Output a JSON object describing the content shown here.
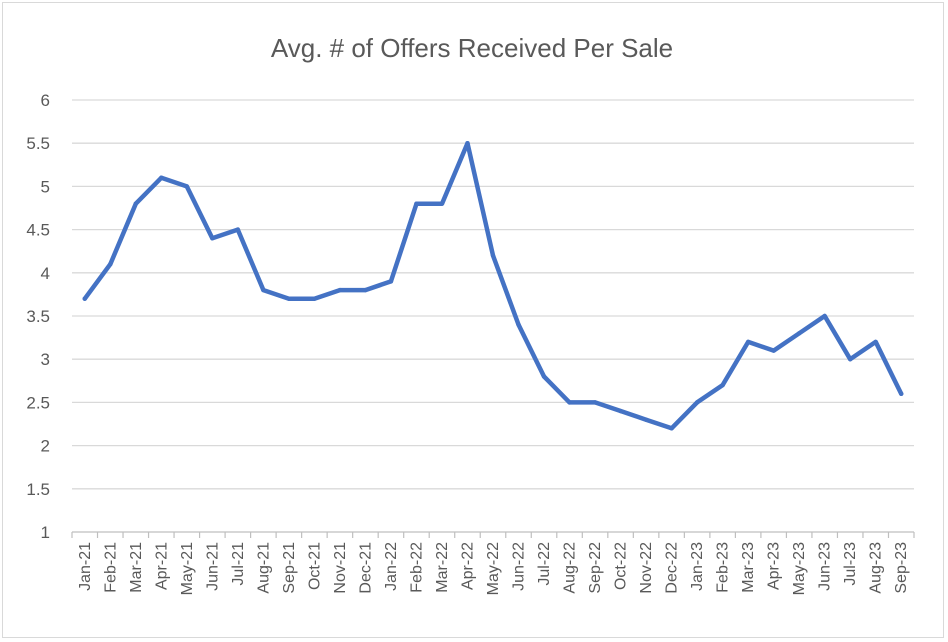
{
  "chart_data": {
    "type": "line",
    "title": "Avg. # of Offers Received Per Sale",
    "xlabel": "",
    "ylabel": "",
    "ylim": [
      1,
      6
    ],
    "yticks": [
      "1",
      "1.5",
      "2",
      "2.5",
      "3",
      "3.5",
      "4",
      "4.5",
      "5",
      "5.5",
      "6"
    ],
    "grid": true,
    "legend": "none",
    "categories": [
      "Jan-21",
      "Feb-21",
      "Mar-21",
      "Apr-21",
      "May-21",
      "Jun-21",
      "Jul-21",
      "Aug-21",
      "Sep-21",
      "Oct-21",
      "Nov-21",
      "Dec-21",
      "Jan-22",
      "Feb-22",
      "Mar-22",
      "Apr-22",
      "May-22",
      "Jun-22",
      "Jul-22",
      "Aug-22",
      "Sep-22",
      "Oct-22",
      "Nov-22",
      "Dec-22",
      "Jan-23",
      "Feb-23",
      "Mar-23",
      "Apr-23",
      "May-23",
      "Jun-23",
      "Jul-23",
      "Aug-23",
      "Sep-23"
    ],
    "series": [
      {
        "values": [
          3.7,
          4.1,
          4.8,
          5.1,
          5.0,
          4.4,
          4.5,
          3.8,
          3.7,
          3.7,
          3.8,
          3.8,
          3.9,
          4.8,
          4.8,
          5.5,
          4.2,
          3.4,
          2.8,
          2.5,
          2.5,
          2.4,
          2.3,
          2.2,
          2.5,
          2.7,
          3.2,
          3.1,
          3.3,
          3.5,
          3.0,
          3.2,
          2.6
        ],
        "color": "#4472c4"
      }
    ]
  }
}
